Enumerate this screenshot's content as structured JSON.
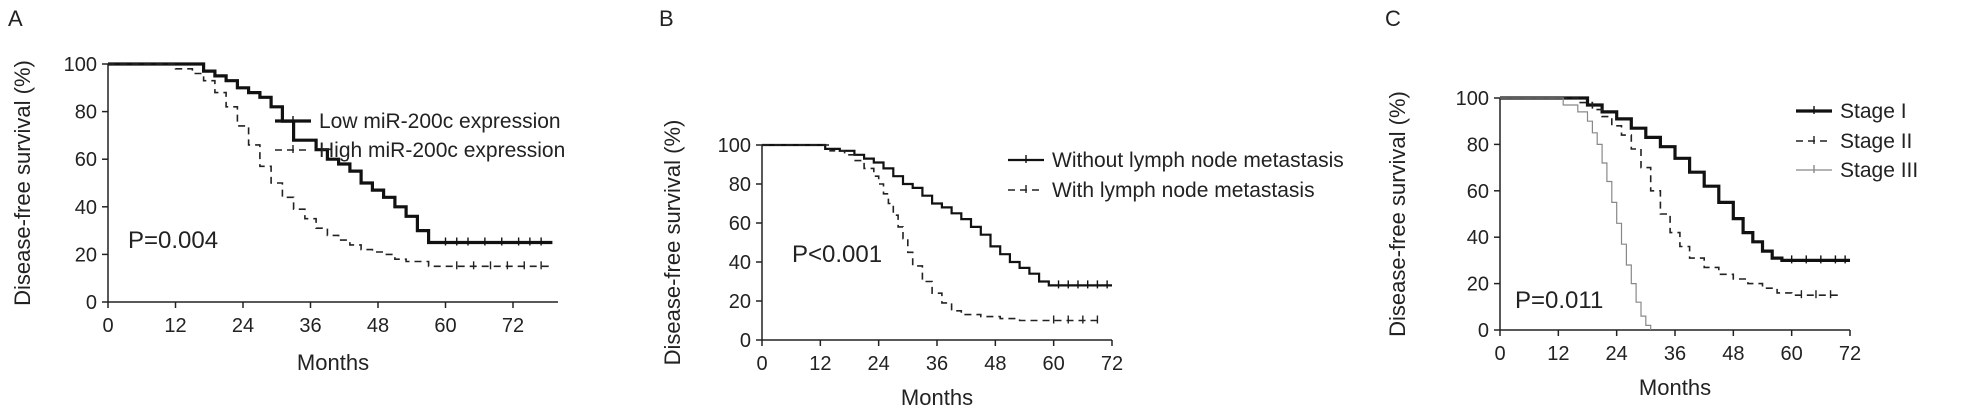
{
  "chart_data": [
    {
      "panel": "A",
      "type": "line",
      "xlabel": "Months",
      "ylabel": "Disease-free survival (%)",
      "xlim": [
        0,
        80
      ],
      "ylim": [
        0,
        100
      ],
      "xticks": [
        0,
        12,
        24,
        36,
        48,
        60,
        72
      ],
      "yticks": [
        0,
        20,
        40,
        60,
        80,
        100
      ],
      "annotation": "P=0.004",
      "legend_position": "right",
      "series": [
        {
          "name": "Low miR-200c expression",
          "style": "solid-thick",
          "x": [
            0,
            14,
            17,
            19,
            21,
            23,
            25,
            27,
            29,
            31,
            33,
            35,
            37,
            39,
            41,
            43,
            45,
            47,
            49,
            51,
            53,
            55,
            57,
            79
          ],
          "y": [
            100,
            100,
            97,
            95,
            93,
            90,
            88,
            86,
            82,
            76,
            68,
            68,
            64,
            60,
            58,
            55,
            50,
            47,
            44,
            40,
            36,
            30,
            25,
            25
          ],
          "censor_x": [
            60,
            62,
            64,
            67,
            70,
            73,
            75,
            77
          ],
          "censor_y": [
            25,
            25,
            25,
            25,
            25,
            25,
            25,
            25
          ]
        },
        {
          "name": "High miR-200c expression",
          "style": "dashed",
          "x": [
            0,
            8,
            12,
            15,
            17,
            19,
            21,
            23,
            25,
            27,
            29,
            31,
            33,
            35,
            37,
            39,
            41,
            43,
            45,
            47,
            49,
            51,
            53,
            55,
            57,
            79
          ],
          "y": [
            100,
            100,
            98,
            96,
            93,
            88,
            82,
            74,
            66,
            57,
            50,
            44,
            39,
            35,
            31,
            28,
            26,
            24,
            22,
            21,
            20,
            18,
            17,
            17,
            15,
            15
          ],
          "censor_x": [
            62,
            65,
            68,
            71,
            74,
            77
          ],
          "censor_y": [
            15,
            15,
            15,
            15,
            15,
            15
          ]
        }
      ]
    },
    {
      "panel": "B",
      "type": "line",
      "xlabel": "Months",
      "ylabel": "Disease-free survival (%)",
      "xlim": [
        0,
        72
      ],
      "ylim": [
        0,
        100
      ],
      "xticks": [
        0,
        12,
        24,
        36,
        48,
        60,
        72
      ],
      "yticks": [
        0,
        20,
        40,
        60,
        80,
        100
      ],
      "annotation": "P<0.001",
      "legend_position": "top-right",
      "series": [
        {
          "name": "Without lymph node metastasis",
          "style": "solid",
          "x": [
            0,
            10,
            13,
            16,
            19,
            21,
            23,
            25,
            27,
            29,
            31,
            33,
            35,
            37,
            39,
            41,
            43,
            45,
            47,
            49,
            51,
            53,
            55,
            57,
            59,
            72
          ],
          "y": [
            100,
            100,
            98,
            97,
            95,
            93,
            91,
            88,
            84,
            80,
            78,
            74,
            70,
            68,
            65,
            62,
            58,
            54,
            48,
            44,
            40,
            37,
            34,
            30,
            28,
            28
          ],
          "censor_x": [
            61,
            63,
            65,
            67,
            69,
            71
          ],
          "censor_y": [
            28,
            28,
            28,
            28,
            28,
            28
          ]
        },
        {
          "name": "With lymph node metastasis",
          "style": "dashed",
          "x": [
            0,
            10,
            14,
            17,
            19,
            21,
            23,
            24,
            25,
            26,
            27,
            28,
            29,
            30,
            31,
            33,
            35,
            37,
            39,
            41,
            45,
            49,
            53,
            57,
            70
          ],
          "y": [
            100,
            100,
            97,
            95,
            92,
            88,
            84,
            80,
            75,
            70,
            64,
            58,
            52,
            45,
            38,
            30,
            24,
            19,
            15,
            13,
            12,
            11,
            10,
            10,
            10
          ],
          "censor_x": [
            60,
            63,
            66,
            69
          ],
          "censor_y": [
            10,
            10,
            10,
            10
          ]
        }
      ]
    },
    {
      "panel": "C",
      "type": "line",
      "xlabel": "Months",
      "ylabel": "Disease-free survival (%)",
      "xlim": [
        0,
        72
      ],
      "ylim": [
        0,
        100
      ],
      "xticks": [
        0,
        12,
        24,
        36,
        48,
        60,
        72
      ],
      "yticks": [
        0,
        20,
        40,
        60,
        80,
        100
      ],
      "annotation": "P=0.011",
      "legend_position": "right",
      "series": [
        {
          "name": "Stage I",
          "style": "solid-thick",
          "x": [
            0,
            15,
            18,
            21,
            24,
            27,
            30,
            33,
            36,
            39,
            42,
            45,
            48,
            50,
            52,
            54,
            56,
            58,
            72
          ],
          "y": [
            100,
            100,
            97,
            94,
            91,
            87,
            83,
            79,
            74,
            68,
            62,
            55,
            48,
            42,
            38,
            34,
            31,
            30,
            30
          ],
          "censor_x": [
            60,
            63,
            66,
            69,
            71
          ],
          "censor_y": [
            30,
            30,
            30,
            30,
            30
          ]
        },
        {
          "name": "Stage II",
          "style": "dashed",
          "x": [
            0,
            13,
            16,
            19,
            21,
            23,
            25,
            27,
            29,
            31,
            33,
            35,
            37,
            39,
            42,
            45,
            48,
            51,
            54,
            57,
            60,
            70
          ],
          "y": [
            100,
            100,
            98,
            95,
            92,
            88,
            84,
            78,
            70,
            60,
            50,
            42,
            36,
            31,
            27,
            24,
            22,
            20,
            18,
            16,
            15,
            15
          ],
          "censor_x": [
            62,
            65,
            68
          ],
          "censor_y": [
            15,
            15,
            15
          ]
        },
        {
          "name": "Stage III",
          "style": "thin-gray",
          "x": [
            0,
            10,
            13,
            16,
            18,
            19,
            20,
            21,
            22,
            23,
            24,
            25,
            26,
            27,
            28,
            29,
            30,
            31
          ],
          "y": [
            100,
            100,
            97,
            94,
            90,
            85,
            80,
            72,
            64,
            55,
            46,
            37,
            28,
            20,
            12,
            6,
            2,
            0
          ],
          "censor_x": [],
          "censor_y": []
        }
      ]
    }
  ]
}
